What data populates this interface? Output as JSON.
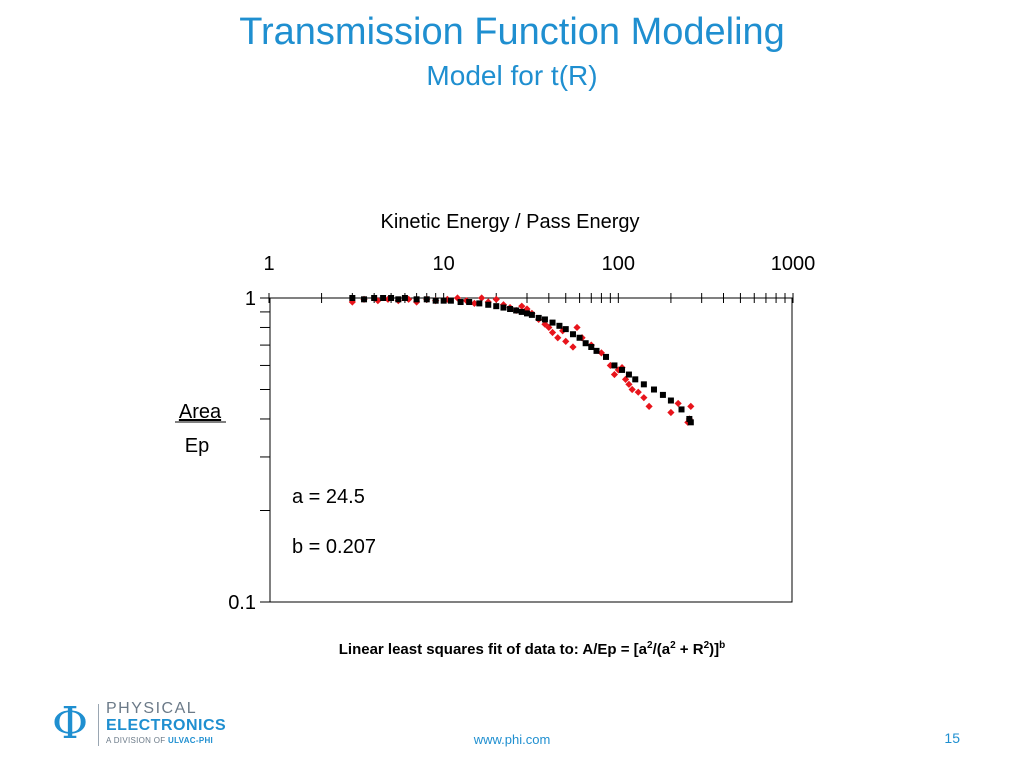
{
  "slide": {
    "title": "Transmission Function Modeling",
    "subtitle": "Model for t(R)",
    "caption_prefix": "Linear least squares fit of data to: A/Ep = [a",
    "caption_sup1": "2",
    "caption_mid1": "/(a",
    "caption_sup2": "2",
    "caption_mid2": " + R",
    "caption_sup3": "2",
    "caption_mid3": ")]",
    "caption_sup4": "b",
    "footer_url": "www.phi.com",
    "page_number": "15"
  },
  "logo": {
    "symbol": "Φ",
    "line1": "PHYSICAL",
    "line2": "ELECTRONICS",
    "line3_prefix": "A DIVISION OF ",
    "line3_brand": "ULVAC-PHI"
  },
  "chart_data": {
    "type": "scatter",
    "title": "",
    "xlabel": "Kinetic Energy / Pass Energy",
    "ylabel_top": "Area",
    "ylabel_bottom": "Ep",
    "x_scale": "log",
    "y_scale": "log",
    "xlim": [
      1,
      1000
    ],
    "ylim": [
      0.1,
      1
    ],
    "x_axis_position": "top",
    "x_tick_labels": [
      "1",
      "10",
      "100",
      "1000"
    ],
    "x_tick_values": [
      1,
      10,
      100,
      1000
    ],
    "y_tick_labels": [
      "1",
      "0.1"
    ],
    "y_tick_values": [
      1,
      0.1
    ],
    "grid": false,
    "annotations": [
      "a = 24.5",
      "b = 0.207"
    ],
    "series": [
      {
        "color": "#e8141b",
        "marker": "diamond",
        "points": [
          [
            3.0,
            0.97
          ],
          [
            3.5,
            0.99
          ],
          [
            4.2,
            0.98
          ],
          [
            4.8,
            0.99
          ],
          [
            5.5,
            0.98
          ],
          [
            6.3,
            0.99
          ],
          [
            7.0,
            0.97
          ],
          [
            8.0,
            0.99
          ],
          [
            9.0,
            0.98
          ],
          [
            10.5,
            0.99
          ],
          [
            12.0,
            1.0
          ],
          [
            13.5,
            0.98
          ],
          [
            15.0,
            0.96
          ],
          [
            16.5,
            1.0
          ],
          [
            18.0,
            0.97
          ],
          [
            20.0,
            0.99
          ],
          [
            22.0,
            0.95
          ],
          [
            24.0,
            0.93
          ],
          [
            26.0,
            0.91
          ],
          [
            28.0,
            0.94
          ],
          [
            30.0,
            0.92
          ],
          [
            32.0,
            0.89
          ],
          [
            35.0,
            0.85
          ],
          [
            38.0,
            0.82
          ],
          [
            40.0,
            0.8
          ],
          [
            42.0,
            0.77
          ],
          [
            45.0,
            0.74
          ],
          [
            48.0,
            0.78
          ],
          [
            50.0,
            0.72
          ],
          [
            55.0,
            0.69
          ],
          [
            58.0,
            0.8
          ],
          [
            62.0,
            0.74
          ],
          [
            70.0,
            0.7
          ],
          [
            80.0,
            0.66
          ],
          [
            90.0,
            0.6
          ],
          [
            95.0,
            0.56
          ],
          [
            100.0,
            0.58
          ],
          [
            105.0,
            0.59
          ],
          [
            110.0,
            0.54
          ],
          [
            115.0,
            0.52
          ],
          [
            120.0,
            0.5
          ],
          [
            130.0,
            0.49
          ],
          [
            140.0,
            0.47
          ],
          [
            150.0,
            0.44
          ],
          [
            200.0,
            0.42
          ],
          [
            220.0,
            0.45
          ],
          [
            250.0,
            0.39
          ],
          [
            255.0,
            0.4
          ],
          [
            260.0,
            0.44
          ]
        ]
      },
      {
        "color": "#000000",
        "marker": "square",
        "points": [
          [
            3.0,
            1.0
          ],
          [
            3.5,
            0.99
          ],
          [
            4.0,
            1.0
          ],
          [
            4.5,
            1.0
          ],
          [
            5.0,
            1.0
          ],
          [
            5.5,
            0.99
          ],
          [
            6.0,
            1.0
          ],
          [
            7.0,
            0.99
          ],
          [
            8.0,
            0.99
          ],
          [
            9.0,
            0.98
          ],
          [
            10.0,
            0.98
          ],
          [
            11.0,
            0.98
          ],
          [
            12.5,
            0.97
          ],
          [
            14.0,
            0.97
          ],
          [
            16.0,
            0.96
          ],
          [
            18.0,
            0.95
          ],
          [
            20.0,
            0.94
          ],
          [
            22.0,
            0.93
          ],
          [
            24.0,
            0.92
          ],
          [
            26.0,
            0.91
          ],
          [
            28.0,
            0.9
          ],
          [
            30.0,
            0.89
          ],
          [
            32.0,
            0.88
          ],
          [
            35.0,
            0.86
          ],
          [
            38.0,
            0.85
          ],
          [
            42.0,
            0.83
          ],
          [
            46.0,
            0.81
          ],
          [
            50.0,
            0.79
          ],
          [
            55.0,
            0.76
          ],
          [
            60.0,
            0.74
          ],
          [
            65.0,
            0.71
          ],
          [
            70.0,
            0.69
          ],
          [
            75.0,
            0.67
          ],
          [
            85.0,
            0.64
          ],
          [
            95.0,
            0.6
          ],
          [
            105.0,
            0.58
          ],
          [
            115.0,
            0.56
          ],
          [
            125.0,
            0.54
          ],
          [
            140.0,
            0.52
          ],
          [
            160.0,
            0.5
          ],
          [
            180.0,
            0.48
          ],
          [
            200.0,
            0.46
          ],
          [
            230.0,
            0.43
          ],
          [
            255.0,
            0.4
          ],
          [
            260.0,
            0.39
          ]
        ]
      }
    ]
  }
}
